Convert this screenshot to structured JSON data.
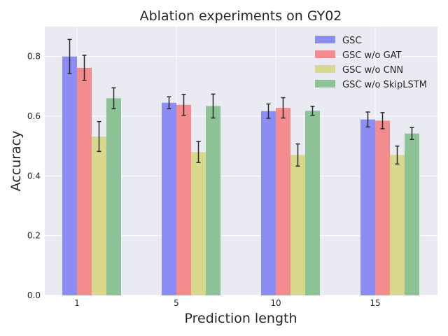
{
  "chart_data": {
    "type": "bar",
    "title": "Ablation experiments on GY02",
    "xlabel": "Prediction length",
    "ylabel": "Accuracy",
    "categories": [
      "1",
      "5",
      "10",
      "15"
    ],
    "ylim": [
      0,
      0.9
    ],
    "yticks": [
      "0.0",
      "0.2",
      "0.4",
      "0.6",
      "0.8"
    ],
    "grid": true,
    "legend_position": "top-right",
    "series": [
      {
        "name": "GSC",
        "color": "#8c8cf5",
        "values": [
          0.8,
          0.645,
          0.617,
          0.589
        ],
        "errors": [
          0.057,
          0.02,
          0.024,
          0.025
        ]
      },
      {
        "name": "GSC w/o GAT",
        "color": "#f28c8f",
        "values": [
          0.762,
          0.638,
          0.628,
          0.585
        ],
        "errors": [
          0.042,
          0.035,
          0.034,
          0.027
        ]
      },
      {
        "name": "GSC w/o CNN",
        "color": "#d8d88c",
        "values": [
          0.532,
          0.48,
          0.47,
          0.47
        ],
        "errors": [
          0.05,
          0.035,
          0.037,
          0.03
        ]
      },
      {
        "name": "GSC w/o SkipLSTM",
        "color": "#8cc296",
        "values": [
          0.66,
          0.634,
          0.618,
          0.542
        ],
        "errors": [
          0.035,
          0.04,
          0.015,
          0.02
        ]
      }
    ]
  }
}
